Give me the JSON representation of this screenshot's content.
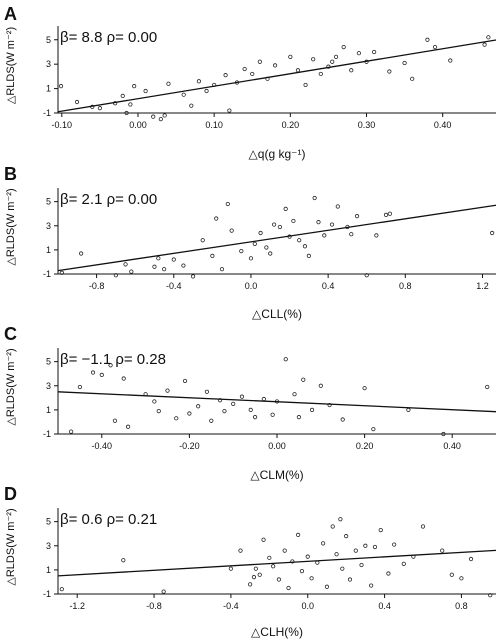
{
  "colors": {
    "axis": "#111111",
    "point": "#222222",
    "line": "#111111",
    "background": "#ffffff"
  },
  "chart_data": [
    {
      "type": "scatter",
      "panel_label": "A",
      "annotation": "β=  8.8  ρ=  0.00",
      "xlabel": "△q(g kg⁻¹)",
      "ylabel": "△RLDS(W m⁻²)",
      "xlim": [
        -0.105,
        0.47
      ],
      "ylim": [
        -1,
        5.8
      ],
      "x_ticks": [
        -0.1,
        0.0,
        0.1,
        0.2,
        0.3,
        0.4
      ],
      "x_tick_labels": [
        "-0.10",
        "0.00",
        "0.10",
        "0.20",
        "0.30",
        "0.40"
      ],
      "y_ticks": [
        -1,
        1,
        3,
        5
      ],
      "y_tick_labels": [
        "-1",
        "1",
        "3",
        "5"
      ],
      "fit_line": [
        [
          -0.105,
          -0.9
        ],
        [
          0.47,
          4.98
        ]
      ],
      "points": [
        [
          -0.101,
          1.2
        ],
        [
          -0.08,
          -0.1
        ],
        [
          -0.06,
          -0.5
        ],
        [
          -0.05,
          -0.6
        ],
        [
          -0.03,
          -0.2
        ],
        [
          -0.02,
          0.4
        ],
        [
          -0.015,
          -1.0
        ],
        [
          -0.01,
          -0.3
        ],
        [
          -0.005,
          1.2
        ],
        [
          0.01,
          0.8
        ],
        [
          0.02,
          -1.3
        ],
        [
          0.03,
          -1.5
        ],
        [
          0.035,
          -1.2
        ],
        [
          0.04,
          1.4
        ],
        [
          0.06,
          0.5
        ],
        [
          0.07,
          -0.4
        ],
        [
          0.08,
          1.6
        ],
        [
          0.09,
          0.8
        ],
        [
          0.1,
          1.3
        ],
        [
          0.115,
          2.1
        ],
        [
          0.12,
          -0.8
        ],
        [
          0.13,
          1.5
        ],
        [
          0.14,
          2.6
        ],
        [
          0.15,
          2.2
        ],
        [
          0.16,
          3.2
        ],
        [
          0.17,
          1.8
        ],
        [
          0.18,
          2.9
        ],
        [
          0.2,
          3.6
        ],
        [
          0.21,
          2.5
        ],
        [
          0.22,
          1.3
        ],
        [
          0.23,
          3.4
        ],
        [
          0.24,
          2.2
        ],
        [
          0.25,
          2.8
        ],
        [
          0.255,
          3.2
        ],
        [
          0.26,
          3.6
        ],
        [
          0.27,
          4.4
        ],
        [
          0.28,
          2.5
        ],
        [
          0.29,
          3.9
        ],
        [
          0.3,
          3.2
        ],
        [
          0.31,
          4.0
        ],
        [
          0.33,
          2.4
        ],
        [
          0.35,
          3.1
        ],
        [
          0.36,
          1.8
        ],
        [
          0.38,
          5.0
        ],
        [
          0.39,
          4.4
        ],
        [
          0.41,
          3.3
        ],
        [
          0.455,
          4.6
        ],
        [
          0.46,
          5.2
        ]
      ]
    },
    {
      "type": "scatter",
      "panel_label": "B",
      "annotation": "β=  2.1  ρ=  0.00",
      "xlabel": "△CLL(%)",
      "ylabel": "△RLDS(W m⁻²)",
      "xlim": [
        -1.0,
        1.27
      ],
      "ylim": [
        -1,
        5.8
      ],
      "x_ticks": [
        -0.8,
        -0.4,
        0.0,
        0.4,
        0.8,
        1.2
      ],
      "x_tick_labels": [
        "-0.8",
        "-0.4",
        "0.0",
        "0.4",
        "0.8",
        "1.2"
      ],
      "y_ticks": [
        -1,
        1,
        3,
        5
      ],
      "y_tick_labels": [
        "-1",
        "1",
        "3",
        "5"
      ],
      "fit_line": [
        [
          -1.0,
          -0.72
        ],
        [
          1.27,
          4.7
        ]
      ],
      "points": [
        [
          -0.98,
          -0.9
        ],
        [
          -0.88,
          0.7
        ],
        [
          -0.7,
          -1.1
        ],
        [
          -0.65,
          -0.2
        ],
        [
          -0.62,
          -0.8
        ],
        [
          -0.5,
          -0.4
        ],
        [
          -0.48,
          0.3
        ],
        [
          -0.45,
          -0.6
        ],
        [
          -0.4,
          0.2
        ],
        [
          -0.35,
          -0.3
        ],
        [
          -0.3,
          -1.2
        ],
        [
          -0.25,
          1.8
        ],
        [
          -0.2,
          0.5
        ],
        [
          -0.18,
          3.6
        ],
        [
          -0.15,
          -0.6
        ],
        [
          -0.12,
          4.8
        ],
        [
          -0.1,
          2.6
        ],
        [
          -0.05,
          0.9
        ],
        [
          0.0,
          0.3
        ],
        [
          0.02,
          1.5
        ],
        [
          0.05,
          2.4
        ],
        [
          0.08,
          1.2
        ],
        [
          0.1,
          0.7
        ],
        [
          0.12,
          3.1
        ],
        [
          0.15,
          2.9
        ],
        [
          0.18,
          4.4
        ],
        [
          0.2,
          2.1
        ],
        [
          0.22,
          3.4
        ],
        [
          0.25,
          1.8
        ],
        [
          0.28,
          1.3
        ],
        [
          0.3,
          0.5
        ],
        [
          0.33,
          5.3
        ],
        [
          0.35,
          3.3
        ],
        [
          0.38,
          2.2
        ],
        [
          0.42,
          3.1
        ],
        [
          0.45,
          4.6
        ],
        [
          0.5,
          2.9
        ],
        [
          0.52,
          2.3
        ],
        [
          0.55,
          3.8
        ],
        [
          0.6,
          -1.1
        ],
        [
          0.65,
          2.2
        ],
        [
          0.7,
          3.9
        ],
        [
          0.72,
          4.0
        ],
        [
          1.25,
          2.4
        ]
      ]
    },
    {
      "type": "scatter",
      "panel_label": "C",
      "annotation": "β=  −1.1  ρ=  0.28",
      "xlabel": "△CLM(%)",
      "ylabel": "△RLDS(W m⁻²)",
      "xlim": [
        -0.5,
        0.5
      ],
      "ylim": [
        -1,
        5.8
      ],
      "x_ticks": [
        -0.4,
        -0.2,
        0.0,
        0.2,
        0.4
      ],
      "x_tick_labels": [
        "-0.40",
        "-0.20",
        "0.00",
        "0.20",
        "0.40"
      ],
      "y_ticks": [
        -1,
        1,
        3,
        5
      ],
      "y_tick_labels": [
        "-1",
        "1",
        "3",
        "5"
      ],
      "fit_line": [
        [
          -0.5,
          2.5
        ],
        [
          0.5,
          0.85
        ]
      ],
      "points": [
        [
          -0.47,
          -0.8
        ],
        [
          -0.45,
          2.9
        ],
        [
          -0.42,
          4.1
        ],
        [
          -0.4,
          3.9
        ],
        [
          -0.38,
          4.7
        ],
        [
          -0.37,
          0.1
        ],
        [
          -0.35,
          3.6
        ],
        [
          -0.34,
          -0.4
        ],
        [
          -0.3,
          2.3
        ],
        [
          -0.28,
          1.7
        ],
        [
          -0.27,
          0.9
        ],
        [
          -0.25,
          2.6
        ],
        [
          -0.23,
          0.3
        ],
        [
          -0.21,
          3.4
        ],
        [
          -0.2,
          0.7
        ],
        [
          -0.18,
          1.3
        ],
        [
          -0.16,
          2.5
        ],
        [
          -0.15,
          0.1
        ],
        [
          -0.13,
          1.8
        ],
        [
          -0.12,
          0.9
        ],
        [
          -0.1,
          1.5
        ],
        [
          -0.08,
          2.1
        ],
        [
          -0.06,
          1.0
        ],
        [
          -0.05,
          0.4
        ],
        [
          -0.03,
          1.9
        ],
        [
          -0.01,
          0.6
        ],
        [
          0.0,
          1.7
        ],
        [
          0.02,
          5.2
        ],
        [
          0.04,
          2.3
        ],
        [
          0.05,
          0.4
        ],
        [
          0.06,
          3.5
        ],
        [
          0.08,
          1.0
        ],
        [
          0.1,
          3.0
        ],
        [
          0.12,
          1.4
        ],
        [
          0.15,
          0.2
        ],
        [
          0.2,
          2.8
        ],
        [
          0.22,
          -0.6
        ],
        [
          0.3,
          1.0
        ],
        [
          0.38,
          -1.0
        ],
        [
          0.48,
          2.9
        ]
      ]
    },
    {
      "type": "scatter",
      "panel_label": "D",
      "annotation": "β=  0.6  ρ=  0.21",
      "xlabel": "△CLH(%)",
      "ylabel": "△RLDS(W m⁻²)",
      "xlim": [
        -1.3,
        0.98
      ],
      "ylim": [
        -1,
        5.8
      ],
      "x_ticks": [
        -1.2,
        -0.8,
        -0.4,
        0.0,
        0.4,
        0.8
      ],
      "x_tick_labels": [
        "-1.2",
        "-0.8",
        "-0.4",
        "0.0",
        "0.4",
        "0.8"
      ],
      "y_ticks": [
        -1,
        1,
        3,
        5
      ],
      "y_tick_labels": [
        "-1",
        "1",
        "3",
        "5"
      ],
      "fit_line": [
        [
          -1.3,
          0.5
        ],
        [
          0.98,
          2.62
        ]
      ],
      "points": [
        [
          -1.28,
          -0.6
        ],
        [
          -0.96,
          1.8
        ],
        [
          -0.75,
          -0.8
        ],
        [
          -0.4,
          1.1
        ],
        [
          -0.35,
          2.6
        ],
        [
          -0.3,
          -0.2
        ],
        [
          -0.28,
          0.4
        ],
        [
          -0.27,
          1.1
        ],
        [
          -0.25,
          0.6
        ],
        [
          -0.23,
          3.5
        ],
        [
          -0.2,
          2.0
        ],
        [
          -0.18,
          1.3
        ],
        [
          -0.15,
          0.2
        ],
        [
          -0.12,
          2.6
        ],
        [
          -0.1,
          -0.5
        ],
        [
          -0.08,
          1.7
        ],
        [
          -0.05,
          3.9
        ],
        [
          -0.03,
          0.9
        ],
        [
          0.0,
          2.1
        ],
        [
          0.02,
          0.3
        ],
        [
          0.05,
          1.6
        ],
        [
          0.08,
          3.2
        ],
        [
          0.1,
          -0.4
        ],
        [
          0.13,
          4.6
        ],
        [
          0.15,
          2.3
        ],
        [
          0.17,
          5.2
        ],
        [
          0.18,
          1.1
        ],
        [
          0.2,
          3.8
        ],
        [
          0.22,
          0.2
        ],
        [
          0.25,
          2.6
        ],
        [
          0.28,
          1.4
        ],
        [
          0.3,
          3.0
        ],
        [
          0.33,
          -0.3
        ],
        [
          0.35,
          2.9
        ],
        [
          0.38,
          4.3
        ],
        [
          0.42,
          0.7
        ],
        [
          0.45,
          3.1
        ],
        [
          0.5,
          1.5
        ],
        [
          0.55,
          2.1
        ],
        [
          0.6,
          4.6
        ],
        [
          0.7,
          2.6
        ],
        [
          0.75,
          0.6
        ],
        [
          0.8,
          0.3
        ],
        [
          0.85,
          1.9
        ],
        [
          0.95,
          -1.1
        ]
      ]
    }
  ]
}
